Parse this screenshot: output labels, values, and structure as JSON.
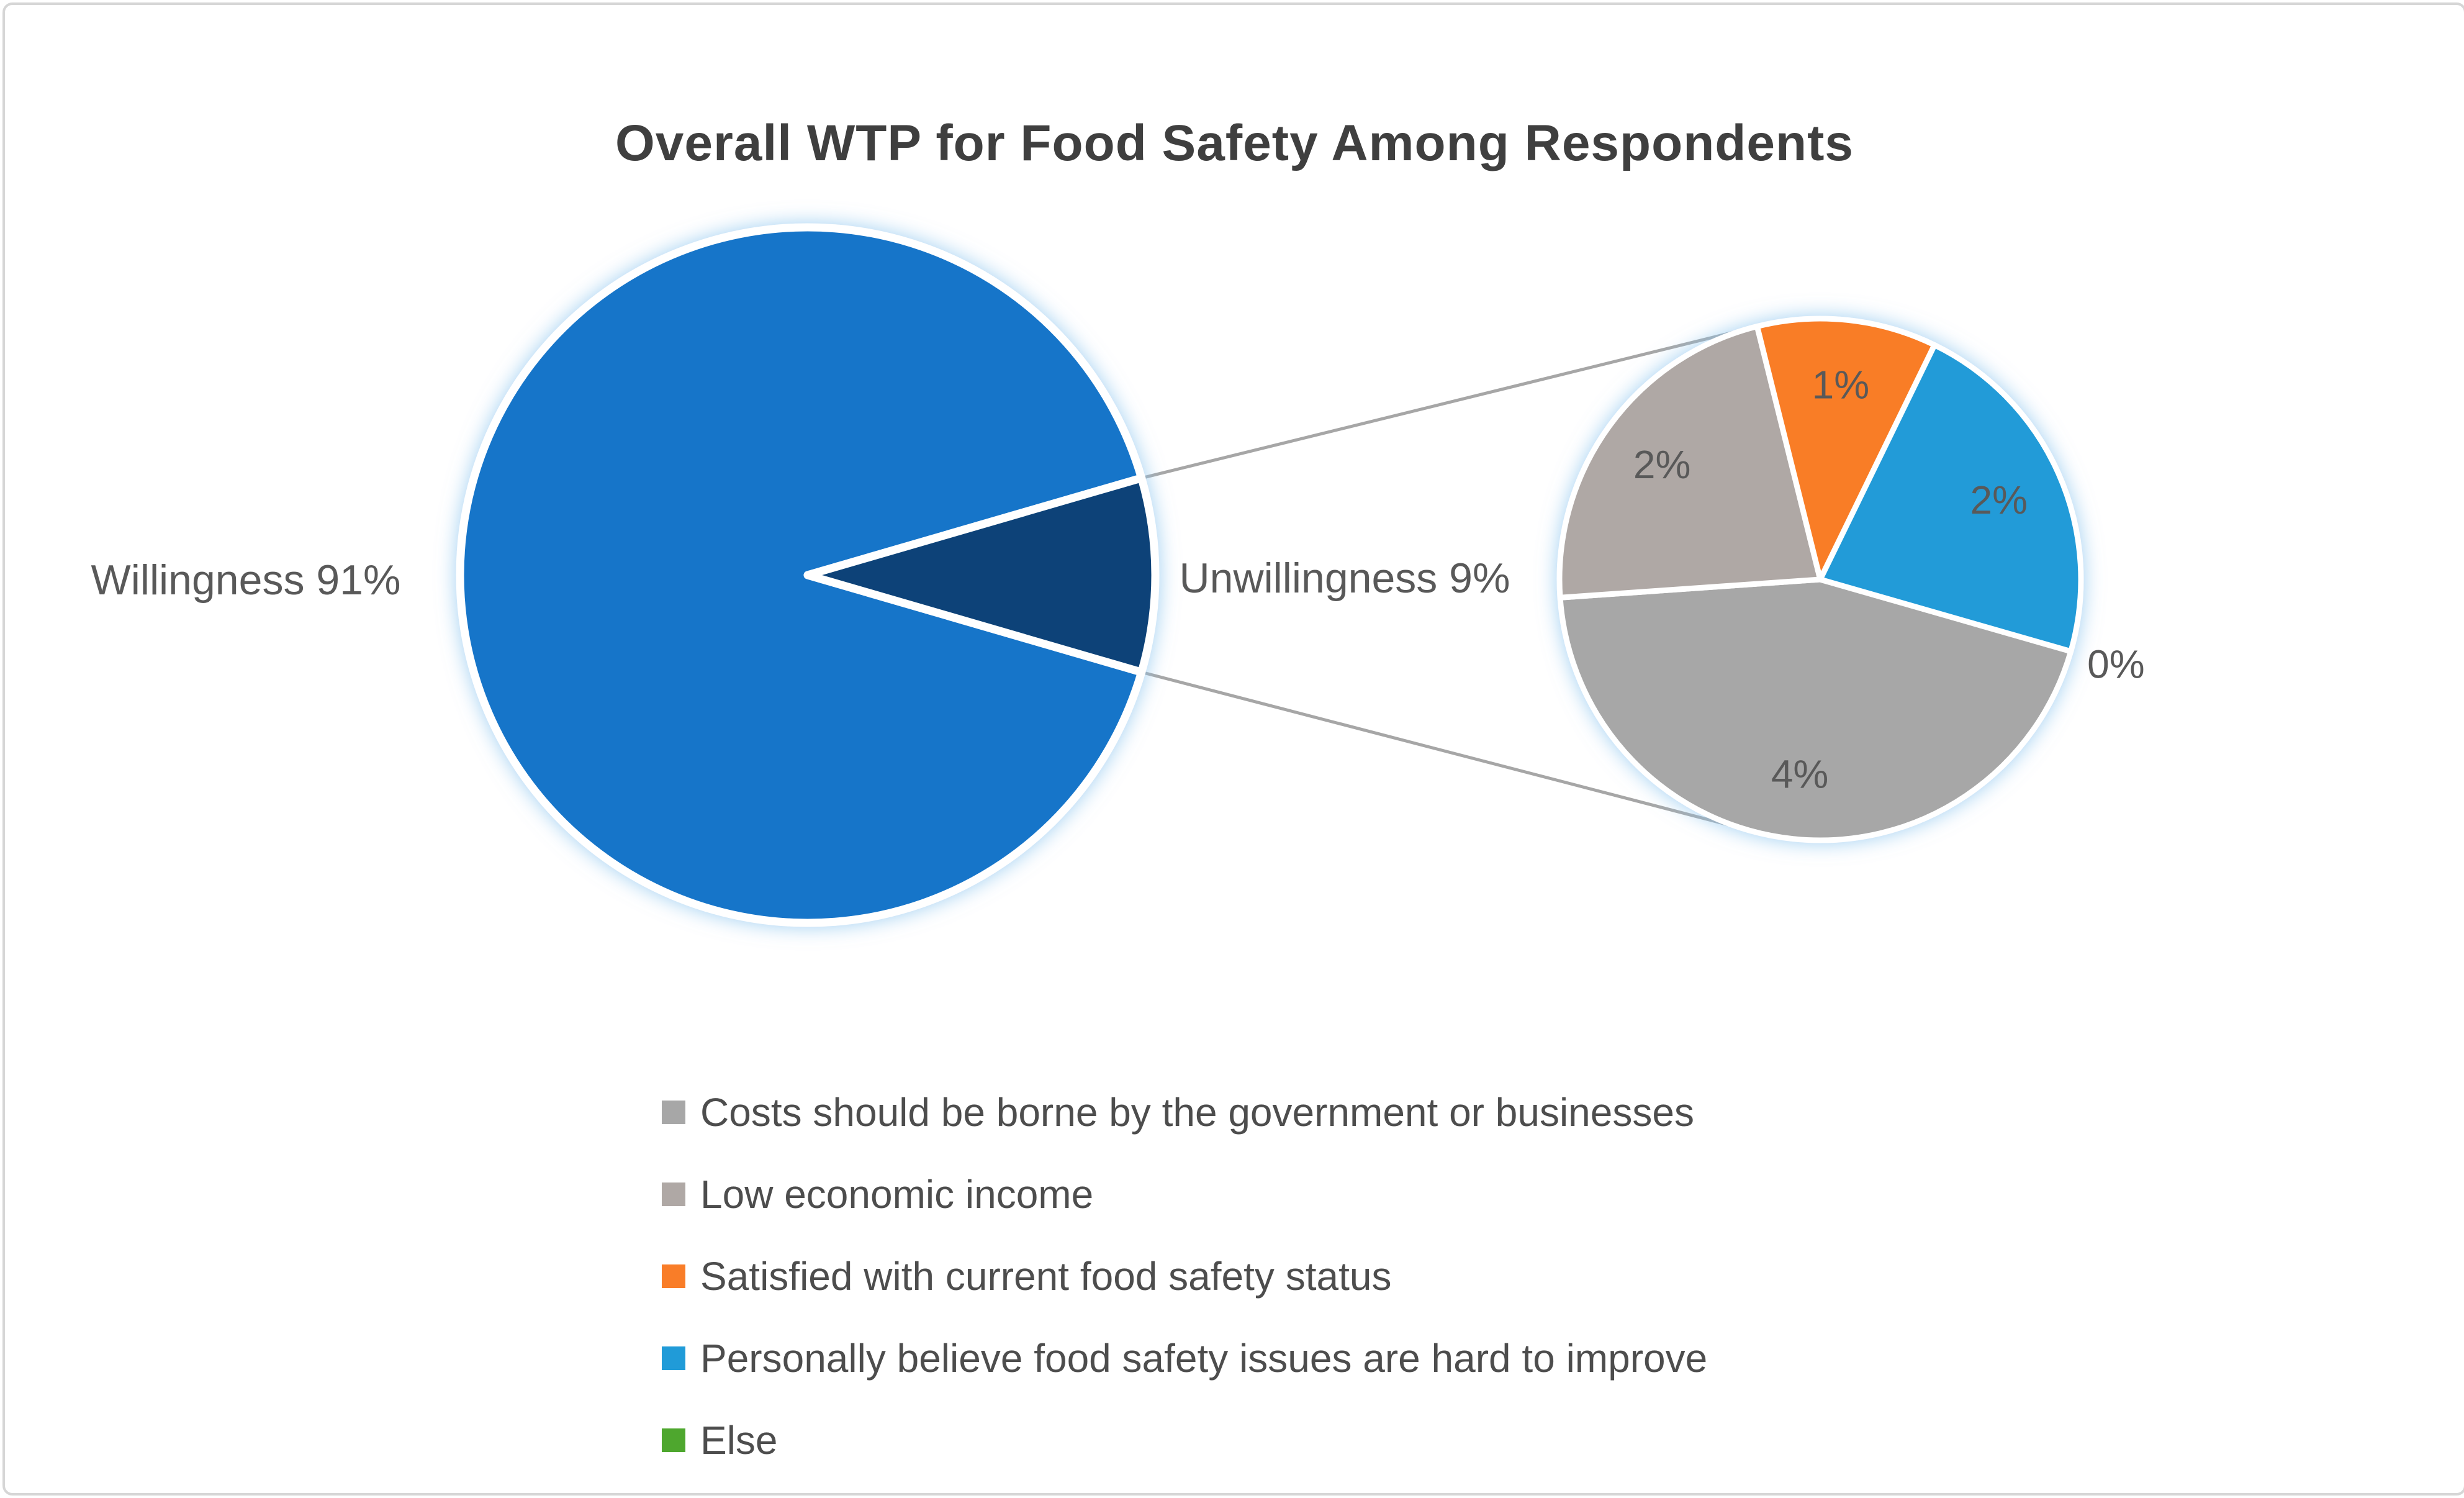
{
  "title": "Overall WTP for Food Safety Among Respondents",
  "callouts": {
    "willingness": "Willingness 91%",
    "unwillingness": "Unwillingness 9%"
  },
  "colors": {
    "willingness_blue": "#1874c9",
    "unwillingness_navy": "#0a4378",
    "costs_gray": "#a7a7a7",
    "income_gray": "#afa8a5",
    "satisfied_orange": "#f97d28",
    "hard_to_improve_blue": "#209bd8",
    "else_green": "#4ea72e",
    "connector_gray": "#a6a6a6",
    "label_gray": "#595959",
    "title_gray": "#3f3f3f",
    "glow_blue": "#8fc6ef"
  },
  "chart_data": {
    "type": "pie-of-pie",
    "title": "Overall WTP for Food Safety Among Respondents",
    "legend_position": "bottom-left",
    "main_pie": {
      "slices": [
        {
          "label": "Willingness",
          "value": 91,
          "callout": "Willingness 91%",
          "color": "#1874c9"
        },
        {
          "label": "Unwillingness",
          "value": 9,
          "callout": "Unwillingness 9%",
          "color": "#0a4378"
        }
      ]
    },
    "secondary_pie": {
      "description": "breakdown of the 9% unwillingness slice",
      "slices": [
        {
          "label": "Costs should be borne by the government or businesses",
          "value": 4,
          "data_label": "4%",
          "color": "#a7a7a7"
        },
        {
          "label": "Low economic income",
          "value": 2,
          "data_label": "2%",
          "color": "#afa8a5"
        },
        {
          "label": "Satisfied with current food safety status",
          "value": 1,
          "data_label": "1%",
          "color": "#f97d28"
        },
        {
          "label": "Personally believe food safety issues are hard to improve",
          "value": 2,
          "data_label": "2%",
          "color": "#209bd8"
        },
        {
          "label": "Else",
          "value": 0,
          "data_label": "0%",
          "color": "#4ea72e"
        }
      ]
    }
  }
}
